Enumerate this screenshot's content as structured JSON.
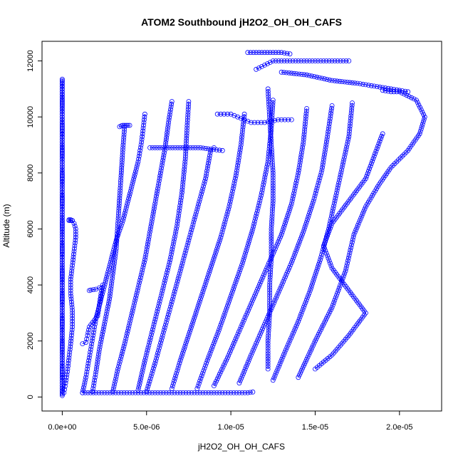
{
  "chart_data": {
    "type": "scatter",
    "title": "ATOM2 Southbound jH2O2_OH_OH_CAFS",
    "xlabel": "jH2O2_OH_OH_CAFS",
    "ylabel": "Altitude (m)",
    "xlim": [
      -1.2e-06,
      2.25e-05
    ],
    "ylim": [
      -500,
      12700
    ],
    "x_ticks": [
      0,
      5e-06,
      1e-05,
      1.5e-05,
      2e-05
    ],
    "x_tick_labels": [
      "0.0e+00",
      "5.0e-06",
      "1.0e-05",
      "1.5e-05",
      "2.0e-05"
    ],
    "y_ticks": [
      0,
      2000,
      4000,
      6000,
      8000,
      10000,
      12000
    ],
    "y_tick_labels": [
      "0",
      "2000",
      "4000",
      "6000",
      "8000",
      "10000",
      "12000"
    ],
    "marker": "open-circle",
    "color": "#0000ff",
    "lines_connected": true,
    "grid": false,
    "legend": "none",
    "series": [
      {
        "x": [
          0,
          0,
          0,
          0,
          0,
          0,
          0,
          0,
          0,
          0,
          0,
          0,
          0,
          0,
          0,
          0,
          0,
          0,
          0,
          0,
          0,
          0,
          0,
          0,
          0,
          0,
          0,
          0,
          0,
          0,
          0,
          0,
          0,
          0,
          0,
          0,
          0,
          0,
          0,
          0,
          0,
          0,
          0,
          0,
          0,
          0,
          0,
          0,
          0,
          0,
          0,
          0,
          0,
          0,
          0,
          0,
          0,
          0,
          0,
          0
        ],
        "y": [
          100,
          300,
          500,
          700,
          900,
          1100,
          1300,
          1500,
          1700,
          1900,
          2100,
          2300,
          2500,
          2700,
          2900,
          3100,
          3300,
          3500,
          3700,
          3900,
          4100,
          4300,
          4500,
          4700,
          4900,
          5100,
          5300,
          5500,
          5700,
          5900,
          6100,
          6300,
          6500,
          6700,
          6900,
          7100,
          7300,
          7500,
          7700,
          7900,
          8100,
          8300,
          8500,
          8700,
          8900,
          9100,
          9300,
          9500,
          9700,
          9900,
          10100,
          10300,
          10500,
          10700,
          10900,
          11100,
          11200,
          11300,
          11350,
          50
        ]
      },
      {
        "x": [
          1e-07,
          2e-07,
          3e-07,
          4e-07,
          5e-07,
          6e-07,
          6e-07,
          5e-07,
          5e-07,
          6e-07,
          7e-07,
          8e-07,
          8e-07,
          7e-07,
          6e-07,
          5e-07,
          4e-07,
          4e-07,
          5e-07,
          6e-07
        ],
        "y": [
          150,
          500,
          900,
          1400,
          1900,
          2500,
          3100,
          3700,
          4200,
          4700,
          5200,
          5700,
          6000,
          6200,
          6300,
          6330,
          6330,
          6300,
          6300,
          6300
        ]
      },
      {
        "x": [
          1.2e-06,
          1.4e-06,
          1.6e-06,
          1.8e-06,
          2e-06,
          2.3e-06,
          2.6e-06,
          2.9e-06,
          3.2e-06,
          3.6e-06,
          3.9e-06,
          4.2e-06,
          4.5e-06,
          4.7e-06,
          4.8e-06,
          4.9e-06
        ],
        "y": [
          150,
          700,
          1400,
          2100,
          2800,
          3500,
          4200,
          4900,
          5600,
          6300,
          7000,
          7700,
          8400,
          9100,
          9600,
          10100
        ]
      },
      {
        "x": [
          1.8e-06,
          2e-06,
          2.2e-06,
          2.5e-06,
          2.8e-06,
          3e-06,
          3.2e-06,
          3.3e-06,
          3.4e-06,
          3.5e-06,
          3.6e-06,
          3.7e-06
        ],
        "y": [
          200,
          900,
          1700,
          2600,
          3500,
          4400,
          5300,
          6200,
          7100,
          8000,
          8900,
          9650
        ]
      },
      {
        "x": [
          3e-06,
          3.3e-06,
          3.7e-06,
          4.1e-06,
          4.5e-06,
          4.9e-06,
          5.2e-06,
          5.5e-06,
          5.8e-06,
          6.1e-06,
          6.3e-06,
          6.5e-06
        ],
        "y": [
          200,
          1000,
          1900,
          2900,
          3900,
          4900,
          5900,
          6900,
          7900,
          8900,
          9800,
          10550
        ]
      },
      {
        "x": [
          4.5e-06,
          4.9e-06,
          5.4e-06,
          5.9e-06,
          6.4e-06,
          6.8e-06,
          7.1e-06,
          7.3e-06,
          7.4e-06,
          7.5e-06
        ],
        "y": [
          250,
          1300,
          2500,
          3700,
          4900,
          6100,
          7300,
          8500,
          9600,
          10550
        ]
      },
      {
        "x": [
          5e-06,
          5.5e-06,
          6e-06,
          6.5e-06,
          7e-06,
          7.5e-06,
          8e-06,
          8.5e-06,
          8.8e-06,
          9e-06
        ],
        "y": [
          200,
          1200,
          2300,
          3400,
          4500,
          5600,
          6700,
          7800,
          8800,
          8900
        ]
      },
      {
        "x": [
          6.5e-06,
          7e-06,
          7.6e-06,
          8.2e-06,
          8.8e-06,
          9.4e-06,
          9.9e-06,
          1.03e-05,
          1.06e-05,
          1.08e-05
        ],
        "y": [
          300,
          1300,
          2400,
          3500,
          4600,
          5700,
          6800,
          7900,
          9000,
          10100
        ]
      },
      {
        "x": [
          8e-06,
          8.6e-06,
          9.3e-06,
          1e-05,
          1.07e-05,
          1.13e-05,
          1.18e-05,
          1.22e-05,
          1.24e-05,
          1.25e-05
        ],
        "y": [
          300,
          1300,
          2400,
          3600,
          4800,
          6000,
          7200,
          8400,
          9600,
          10600
        ]
      },
      {
        "x": [
          9e-06,
          9.8e-06,
          1.06e-05,
          1.14e-05,
          1.22e-05,
          1.3e-05,
          1.36e-05,
          1.4e-05,
          1.43e-05,
          1.45e-05
        ],
        "y": [
          400,
          1400,
          2500,
          3600,
          4700,
          5800,
          6900,
          8000,
          9100,
          10300
        ]
      },
      {
        "x": [
          1.05e-05,
          1.12e-05,
          1.2e-05,
          1.28e-05,
          1.36e-05,
          1.43e-05,
          1.49e-05,
          1.54e-05,
          1.57e-05,
          1.6e-05
        ],
        "y": [
          500,
          1500,
          2600,
          3700,
          4800,
          5900,
          7000,
          8100,
          9200,
          10400
        ]
      },
      {
        "x": [
          1.25e-05,
          1.32e-05,
          1.4e-05,
          1.47e-05,
          1.53e-05,
          1.58e-05,
          1.62e-05,
          1.66e-05,
          1.7e-05,
          1.72e-05
        ],
        "y": [
          600,
          1600,
          2700,
          3800,
          4900,
          6000,
          7100,
          8200,
          9300,
          10500
        ]
      },
      {
        "x": [
          1.4e-05,
          1.5e-05,
          1.6e-05,
          1.68e-05,
          1.73e-05,
          1.8e-05,
          1.88e-05,
          1.95e-05,
          2.05e-05,
          2.12e-05,
          2.15e-05,
          2.1e-05,
          2e-05,
          1.95e-05,
          1.9e-05
        ],
        "y": [
          700,
          2000,
          3200,
          4500,
          5800,
          6800,
          7600,
          8200,
          8800,
          9400,
          10000,
          10600,
          10900,
          10900,
          10950
        ]
      },
      {
        "x": [
          1.15e-05,
          1.2e-05,
          1.25e-05,
          1.3e-05,
          1.35e-05,
          1.4e-05,
          1.45e-05,
          1.5e-05,
          1.55e-05,
          1.6e-05,
          1.65e-05,
          1.7e-05
        ],
        "y": [
          11700,
          11850,
          12000,
          12000,
          12000,
          12000,
          12000,
          12000,
          12000,
          12000,
          12000,
          12000
        ]
      },
      {
        "x": [
          1.1e-05,
          1.15e-05,
          1.2e-05,
          1.25e-05,
          1.3e-05,
          1.35e-05
        ],
        "y": [
          12300,
          12300,
          12300,
          12300,
          12300,
          12250
        ]
      },
      {
        "x": [
          5.2e-06,
          5.8e-06,
          6.4e-06,
          7e-06,
          7.6e-06,
          8.2e-06,
          8.8e-06,
          9.5e-06
        ],
        "y": [
          8900,
          8900,
          8900,
          8900,
          8900,
          8900,
          8850,
          8800
        ]
      },
      {
        "x": [
          9.2e-06,
          9.6e-06,
          1e-05,
          1.04e-05,
          1.08e-05,
          1.12e-05,
          1.16e-05,
          1.2e-05,
          1.24e-05,
          1.28e-05,
          1.32e-05,
          1.36e-05
        ],
        "y": [
          10100,
          10100,
          10100,
          10000,
          9900,
          9800,
          9800,
          9800,
          9850,
          9900,
          9900,
          9900
        ]
      },
      {
        "x": [
          1.2e-06,
          2e-06,
          3e-06,
          4e-06,
          5e-06,
          6e-06,
          7e-06,
          8e-06,
          9e-06,
          1e-05,
          1.1e-05,
          1.13e-05
        ],
        "y": [
          150,
          150,
          150,
          150,
          150,
          150,
          150,
          150,
          150,
          150,
          150,
          180
        ]
      },
      {
        "x": [
          1.6e-06,
          1.7e-06,
          2e-06,
          2.2e-06,
          2.4e-06,
          2.3e-06,
          2.2e-06,
          2.1e-06,
          1.6e-06,
          1.5e-06,
          1.4e-06,
          1.2e-06
        ],
        "y": [
          3800,
          3820,
          3850,
          3900,
          4000,
          3700,
          3300,
          2900,
          2500,
          2200,
          1950,
          1900
        ]
      },
      {
        "x": [
          3.4e-06,
          3.5e-06,
          3.6e-06,
          3.7e-06,
          3.8e-06,
          3.9e-06,
          4e-06
        ],
        "y": [
          9650,
          9680,
          9700,
          9700,
          9700,
          9700,
          9700
        ]
      },
      {
        "x": [
          1.22e-05,
          1.22e-05,
          1.23e-05,
          1.23e-05,
          1.24e-05,
          1.24e-05,
          1.25e-05,
          1.25e-05,
          1.24e-05,
          1.23e-05,
          1.22e-05
        ],
        "y": [
          1000,
          2000,
          3000,
          4000,
          5000,
          6000,
          7000,
          8000,
          9000,
          10000,
          11000
        ]
      },
      {
        "x": [
          1.5e-05,
          1.6e-05,
          1.7e-05,
          1.8e-05,
          1.7e-05,
          1.6e-05,
          1.55e-05,
          1.6e-05,
          1.7e-05,
          1.8e-05,
          1.85e-05,
          1.9e-05
        ],
        "y": [
          1000,
          1500,
          2200,
          3000,
          3800,
          4600,
          5400,
          6200,
          7000,
          7800,
          8600,
          9400
        ]
      },
      {
        "x": [
          1.3e-05,
          1.45e-05,
          1.6e-05,
          1.75e-05,
          1.85e-05,
          1.95e-05,
          2e-05,
          2.05e-05
        ],
        "y": [
          11600,
          11500,
          11300,
          11200,
          11100,
          11000,
          10950,
          10900
        ]
      }
    ]
  }
}
